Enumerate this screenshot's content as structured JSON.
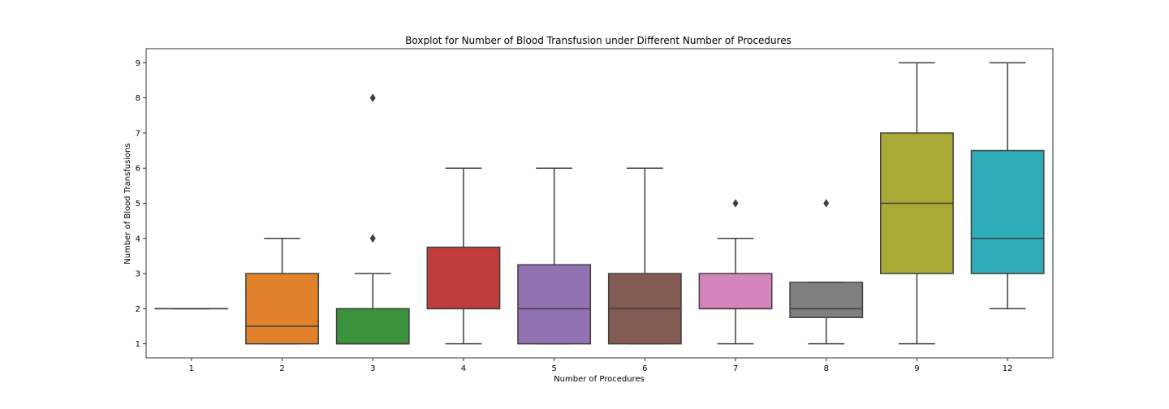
{
  "chart_data": {
    "type": "boxplot",
    "title": "Boxplot for Number of Blood Transfusion under Different Number of Procedures",
    "xlabel": "Number of Procedures",
    "ylabel": "Number of Blood Transfusions",
    "ylim": [
      0.6,
      9.4
    ],
    "yticks": [
      1,
      2,
      3,
      4,
      5,
      6,
      7,
      8,
      9
    ],
    "grid": false,
    "categories": [
      "1",
      "2",
      "3",
      "4",
      "5",
      "6",
      "7",
      "8",
      "9",
      "12"
    ],
    "boxes": [
      {
        "category": "1",
        "whisker_low": 2,
        "q1": 2,
        "median": 2,
        "q3": 2,
        "whisker_high": 2,
        "outliers": [],
        "color": "#3274a1"
      },
      {
        "category": "2",
        "whisker_low": 1,
        "q1": 1,
        "median": 1.5,
        "q3": 3,
        "whisker_high": 4,
        "outliers": [],
        "color": "#e1812c"
      },
      {
        "category": "3",
        "whisker_low": 1,
        "q1": 1,
        "median": 1,
        "q3": 2,
        "whisker_high": 3,
        "outliers": [
          4,
          4,
          8
        ],
        "color": "#3a923a"
      },
      {
        "category": "4",
        "whisker_low": 1,
        "q1": 2,
        "median": 2,
        "q3": 3.75,
        "whisker_high": 6,
        "outliers": [],
        "color": "#c03d3e"
      },
      {
        "category": "5",
        "whisker_low": 1,
        "q1": 1,
        "median": 2,
        "q3": 3.25,
        "whisker_high": 6,
        "outliers": [],
        "color": "#9372b2"
      },
      {
        "category": "6",
        "whisker_low": 1,
        "q1": 1,
        "median": 2,
        "q3": 3,
        "whisker_high": 6,
        "outliers": [],
        "color": "#845b53"
      },
      {
        "category": "7",
        "whisker_low": 1,
        "q1": 2,
        "median": 2,
        "q3": 3,
        "whisker_high": 4,
        "outliers": [
          5
        ],
        "color": "#d684bd"
      },
      {
        "category": "8",
        "whisker_low": 1,
        "q1": 1.75,
        "median": 2,
        "q3": 2.75,
        "whisker_high": 2.75,
        "outliers": [
          5
        ],
        "color": "#7f7f7f"
      },
      {
        "category": "9",
        "whisker_low": 1,
        "q1": 3,
        "median": 5,
        "q3": 7,
        "whisker_high": 9,
        "outliers": [],
        "color": "#a9aa35"
      },
      {
        "category": "12",
        "whisker_low": 2,
        "q1": 3,
        "median": 4,
        "q3": 6.5,
        "whisker_high": 9,
        "outliers": [],
        "color": "#2eabb8"
      }
    ]
  }
}
